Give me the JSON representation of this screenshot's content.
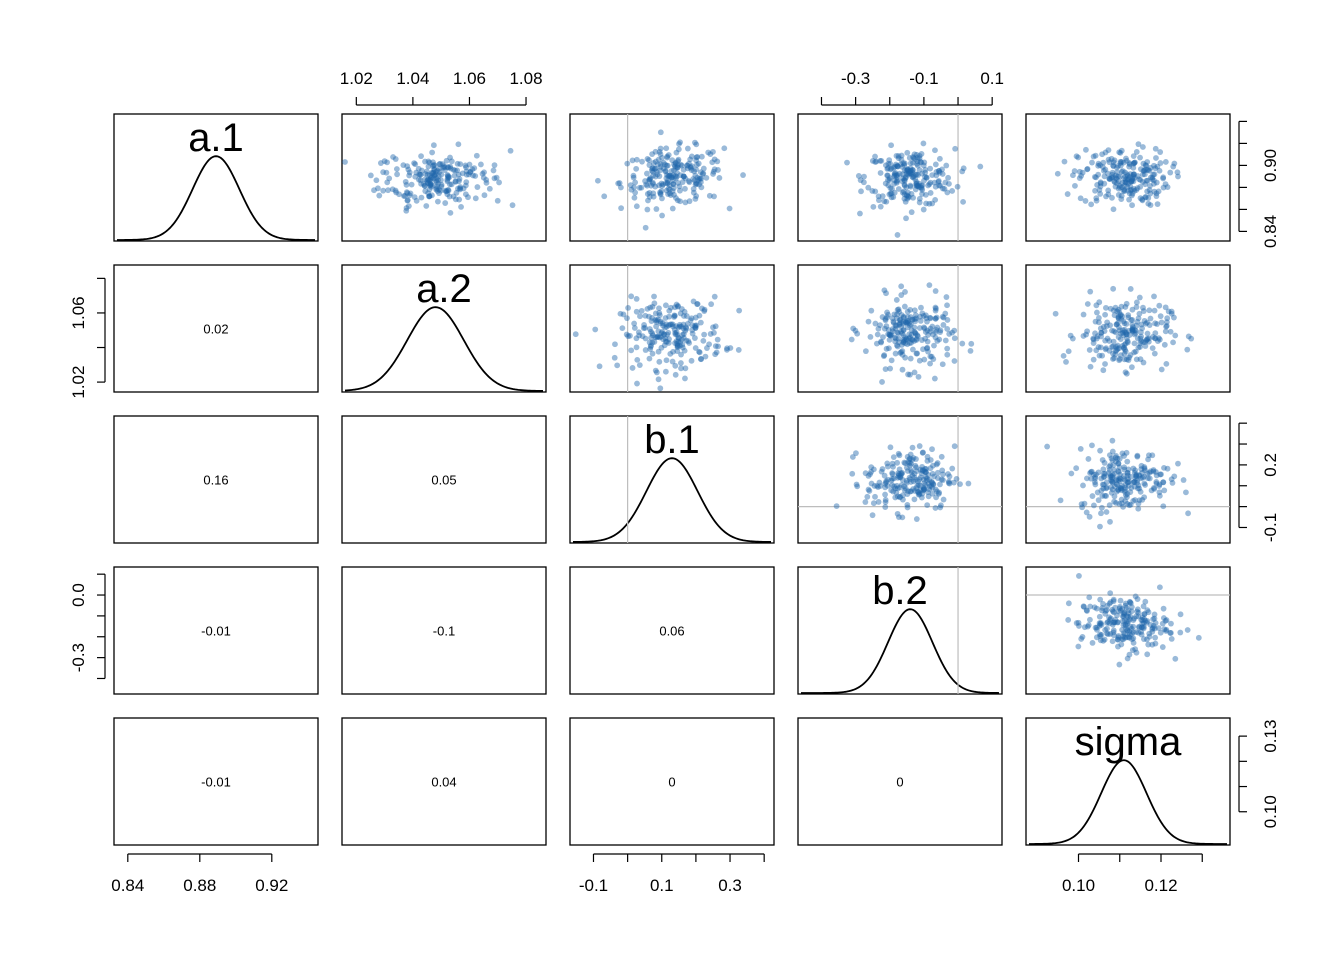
{
  "chart_data": {
    "type": "scatter",
    "layout": "pairs-matrix",
    "variables": [
      {
        "name": "a.1",
        "mean": 0.889,
        "sd": 0.013,
        "range": [
          0.834,
          0.944
        ],
        "ticks": [
          0.84,
          0.88,
          0.92
        ],
        "tick_labels": [
          "0.84",
          "0.88",
          "0.92"
        ],
        "tick_side": "bottom",
        "ref_value": null
      },
      {
        "name": "a.2",
        "mean": 1.048,
        "sd": 0.01,
        "range": [
          1.016,
          1.086
        ],
        "ticks": [
          1.02,
          1.04,
          1.06,
          1.08
        ],
        "tick_labels": [
          "1.02",
          "1.04",
          "1.06",
          "1.08"
        ],
        "tick_side": "top",
        "ref_value": null
      },
      {
        "name": "b.1",
        "mean": 0.13,
        "sd": 0.075,
        "range": [
          -0.16,
          0.42
        ],
        "ticks": [
          -0.1,
          0.0,
          0.1,
          0.2,
          0.3,
          0.4
        ],
        "tick_labels": [
          "-0.1",
          "",
          "0.1",
          "",
          "0.3",
          ""
        ],
        "tick_side": "bottom",
        "ref_value": 0
      },
      {
        "name": "b.2",
        "mean": -0.14,
        "sd": 0.065,
        "range": [
          -0.46,
          0.12
        ],
        "ticks": [
          -0.4,
          -0.3,
          -0.2,
          -0.1,
          0.0,
          0.1
        ],
        "tick_labels": [
          "",
          "-0.3",
          "",
          "-0.1",
          "",
          "0.1"
        ],
        "tick_side": "top",
        "ref_value": 0
      },
      {
        "name": "sigma",
        "mean": 0.111,
        "sd": 0.0055,
        "range": [
          0.088,
          0.136
        ],
        "ticks": [
          0.1,
          0.11,
          0.12,
          0.13
        ],
        "tick_labels": [
          "0.10",
          "",
          "0.12",
          ""
        ],
        "tick_side": "bottom",
        "ref_value": null
      }
    ],
    "left_axes": [
      {
        "row": 1,
        "range": [
          1.016,
          1.086
        ],
        "ticks": [
          1.02,
          1.04,
          1.06,
          1.08
        ],
        "tick_labels": [
          "1.02",
          "",
          "1.06",
          ""
        ]
      },
      {
        "row": 3,
        "range": [
          -0.46,
          0.12
        ],
        "ticks": [
          -0.4,
          -0.3,
          -0.2,
          -0.1,
          0.0,
          0.1
        ],
        "tick_labels": [
          "",
          "-0.3",
          "",
          "",
          "0.0",
          ""
        ]
      }
    ],
    "right_axes": [
      {
        "row": 0,
        "range": [
          0.834,
          0.944
        ],
        "ticks": [
          0.84,
          0.86,
          0.88,
          0.9,
          0.92,
          0.94
        ],
        "tick_labels": [
          "0.84",
          "",
          "",
          "0.90",
          "",
          ""
        ]
      },
      {
        "row": 2,
        "range": [
          -0.16,
          0.42
        ],
        "ticks": [
          -0.1,
          0.0,
          0.1,
          0.2,
          0.3,
          0.4
        ],
        "tick_labels": [
          "-0.1",
          "",
          "",
          "0.2",
          "",
          ""
        ]
      },
      {
        "row": 4,
        "range": [
          0.088,
          0.136
        ],
        "ticks": [
          0.1,
          0.11,
          0.12,
          0.13
        ],
        "tick_labels": [
          "0.10",
          "",
          "",
          "0.13"
        ]
      }
    ],
    "correlations": [
      {
        "row": 1,
        "col": 0,
        "value": "0.02"
      },
      {
        "row": 2,
        "col": 0,
        "value": "0.16"
      },
      {
        "row": 2,
        "col": 1,
        "value": "0.05"
      },
      {
        "row": 3,
        "col": 0,
        "value": "-0.01"
      },
      {
        "row": 3,
        "col": 1,
        "value": "-0.1"
      },
      {
        "row": 3,
        "col": 2,
        "value": "0.06"
      },
      {
        "row": 4,
        "col": 0,
        "value": "-0.01"
      },
      {
        "row": 4,
        "col": 1,
        "value": "0.04"
      },
      {
        "row": 4,
        "col": 2,
        "value": "0"
      },
      {
        "row": 4,
        "col": 3,
        "value": "0"
      }
    ],
    "samples_per_panel": 220,
    "point_color": "#1f66aa",
    "point_opacity": 0.45,
    "reference_line_color": "#bdbdbd",
    "density_line_color": "#000000",
    "grid": false,
    "legend": "none"
  }
}
